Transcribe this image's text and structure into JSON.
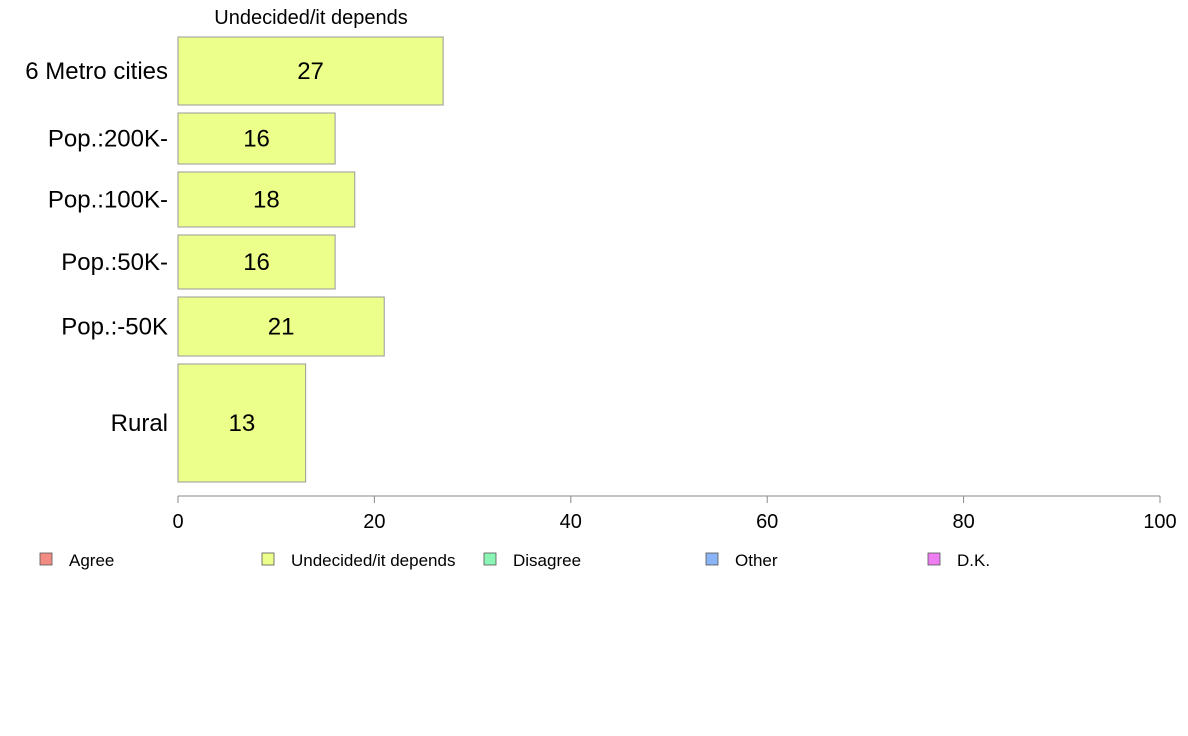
{
  "chart_data": {
    "type": "bar",
    "orientation": "horizontal",
    "title": "Undecided/it depends",
    "categories": [
      "6 Metro cities",
      "Pop.:200K-",
      "Pop.:100K-",
      "Pop.:50K-",
      "Pop.:-50K",
      "Rural"
    ],
    "values": [
      27,
      16,
      18,
      16,
      21,
      13
    ],
    "value_labels": [
      "27",
      "16",
      "18",
      "16",
      "21",
      "13"
    ],
    "series_color": "#ecff8a",
    "xlim": [
      0,
      100
    ],
    "xticks": [
      0,
      20,
      40,
      60,
      80,
      100
    ],
    "xtick_labels": [
      "0",
      "20",
      "40",
      "60",
      "80",
      "100"
    ],
    "grid": false,
    "legend_position": "bottom",
    "legend": [
      {
        "label": "Agree",
        "color": "#f28b84"
      },
      {
        "label": "Undecided/it depends",
        "color": "#ecff8a"
      },
      {
        "label": "Disagree",
        "color": "#8af5b4"
      },
      {
        "label": "Other",
        "color": "#8ab4f5"
      },
      {
        "label": "D.K.",
        "color": "#ee7df2"
      }
    ]
  }
}
